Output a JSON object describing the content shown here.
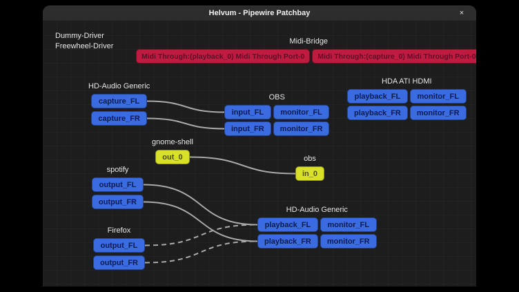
{
  "window": {
    "title": "Helvum - Pipewire Patchbay",
    "close_label": "×"
  },
  "colors": {
    "canvas_bg": "#1d1d1d",
    "titlebar_bg": "#2d2d2d",
    "audio_port": "#3a6be0",
    "midi_port": "#bf1a40",
    "video_port": "#d8e02a",
    "link": "#aaaaaa"
  },
  "drivers": {
    "line1": "Dummy-Driver",
    "line2": "Freewheel-Driver"
  },
  "nodes": {
    "midi_bridge": {
      "label": "Midi-Bridge",
      "ports": [
        "Midi Through:(playback_0) Midi Through Port-0",
        "Midi Through:(capture_0) Midi Through Port-0"
      ]
    },
    "hd_audio_capture": {
      "label": "HD-Audio Generic",
      "ports": [
        "capture_FL",
        "capture_FR"
      ]
    },
    "obs_app": {
      "label": "OBS",
      "ports": [
        "input_FL",
        "monitor_FL",
        "input_FR",
        "monitor_FR"
      ]
    },
    "hda_ati_hdmi": {
      "label": "HDA ATI HDMI",
      "ports": [
        "playback_FL",
        "monitor_FL",
        "playback_FR",
        "monitor_FR"
      ]
    },
    "gnome_shell": {
      "label": "gnome-shell",
      "ports": [
        "out_0"
      ]
    },
    "obs_screencast": {
      "label": "obs",
      "ports": [
        "in_0"
      ]
    },
    "spotify": {
      "label": "spotify",
      "ports": [
        "output_FL",
        "output_FR"
      ]
    },
    "firefox": {
      "label": "Firefox",
      "ports": [
        "output_FL",
        "output_FR"
      ]
    },
    "hd_audio_playback": {
      "label": "HD-Audio Generic",
      "ports": [
        "playback_FL",
        "monitor_FL",
        "playback_FR",
        "monitor_FR"
      ]
    }
  },
  "connections": [
    {
      "from": "port-hdagcap-0",
      "to": "port-obsapp-0",
      "style": "solid"
    },
    {
      "from": "port-hdagcap-1",
      "to": "port-obsapp-2",
      "style": "solid"
    },
    {
      "from": "port-gnome-0",
      "to": "port-obsr-0",
      "style": "solid"
    },
    {
      "from": "port-spotify-0",
      "to": "port-hdagpb-0",
      "style": "solid"
    },
    {
      "from": "port-spotify-1",
      "to": "port-hdagpb-2",
      "style": "solid"
    },
    {
      "from": "port-firefox-0",
      "to": "port-hdagpb-0",
      "style": "dashed"
    },
    {
      "from": "port-firefox-1",
      "to": "port-hdagpb-2",
      "style": "dashed"
    }
  ]
}
